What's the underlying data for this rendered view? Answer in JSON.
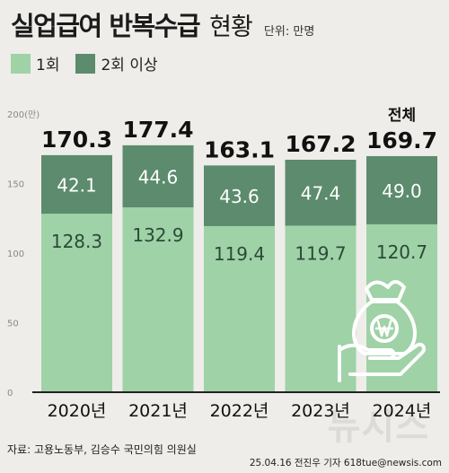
{
  "header": {
    "title": "실업급여 반복수급",
    "subtitle": "현황",
    "unit_note": "단위: 만명"
  },
  "legend": [
    {
      "label": "1회",
      "color": "#9fd2a7"
    },
    {
      "label": "2회 이상",
      "color": "#5c8b6d"
    }
  ],
  "chart_data": {
    "type": "bar",
    "stacked": true,
    "categories": [
      "2020년",
      "2021년",
      "2022년",
      "2023년",
      "2024년"
    ],
    "series": [
      {
        "name": "1회",
        "values": [
          128.3,
          132.9,
          119.4,
          119.7,
          120.7
        ],
        "color": "#9fd2a7"
      },
      {
        "name": "2회 이상",
        "values": [
          42.1,
          44.6,
          43.6,
          47.4,
          49.0
        ],
        "color": "#5c8b6d"
      }
    ],
    "totals": [
      170.3,
      177.4,
      163.1,
      167.2,
      169.7
    ],
    "total_label": "전체",
    "ylim": [
      0,
      200
    ],
    "yticks": [
      "0",
      "50",
      "100",
      "150",
      "200(만)"
    ],
    "grid": false
  },
  "footer": {
    "source": "자료: 고용노동부, 김승수 국민의힘 의원실",
    "credit": "25.04.16 전진우 기자 618tue@newsis.com",
    "watermark": "뉴시스"
  },
  "icons": [
    "money-bag-hand-icon"
  ]
}
